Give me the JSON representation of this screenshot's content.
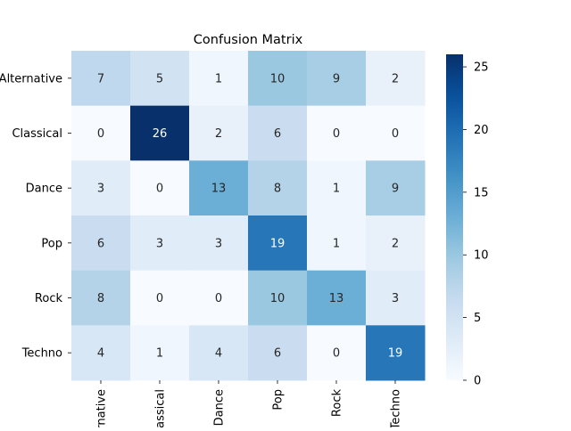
{
  "chart_data": {
    "type": "heatmap",
    "title": "Confusion Matrix",
    "row_labels": [
      "Alternative",
      "Classical",
      "Dance",
      "Pop",
      "Rock",
      "Techno"
    ],
    "col_labels": [
      "Alternative",
      "Classical",
      "Dance",
      "Pop",
      "Rock",
      "Techno"
    ],
    "values": [
      [
        7,
        5,
        1,
        10,
        9,
        2
      ],
      [
        0,
        26,
        2,
        6,
        0,
        0
      ],
      [
        3,
        0,
        13,
        8,
        1,
        9
      ],
      [
        6,
        3,
        3,
        19,
        1,
        2
      ],
      [
        8,
        0,
        0,
        10,
        13,
        3
      ],
      [
        4,
        1,
        4,
        6,
        0,
        19
      ]
    ],
    "vmin": 0,
    "vmax": 26,
    "colormap": "Blues",
    "colorbar_ticks": [
      0,
      5,
      10,
      15,
      20,
      25
    ],
    "annotations": true
  }
}
